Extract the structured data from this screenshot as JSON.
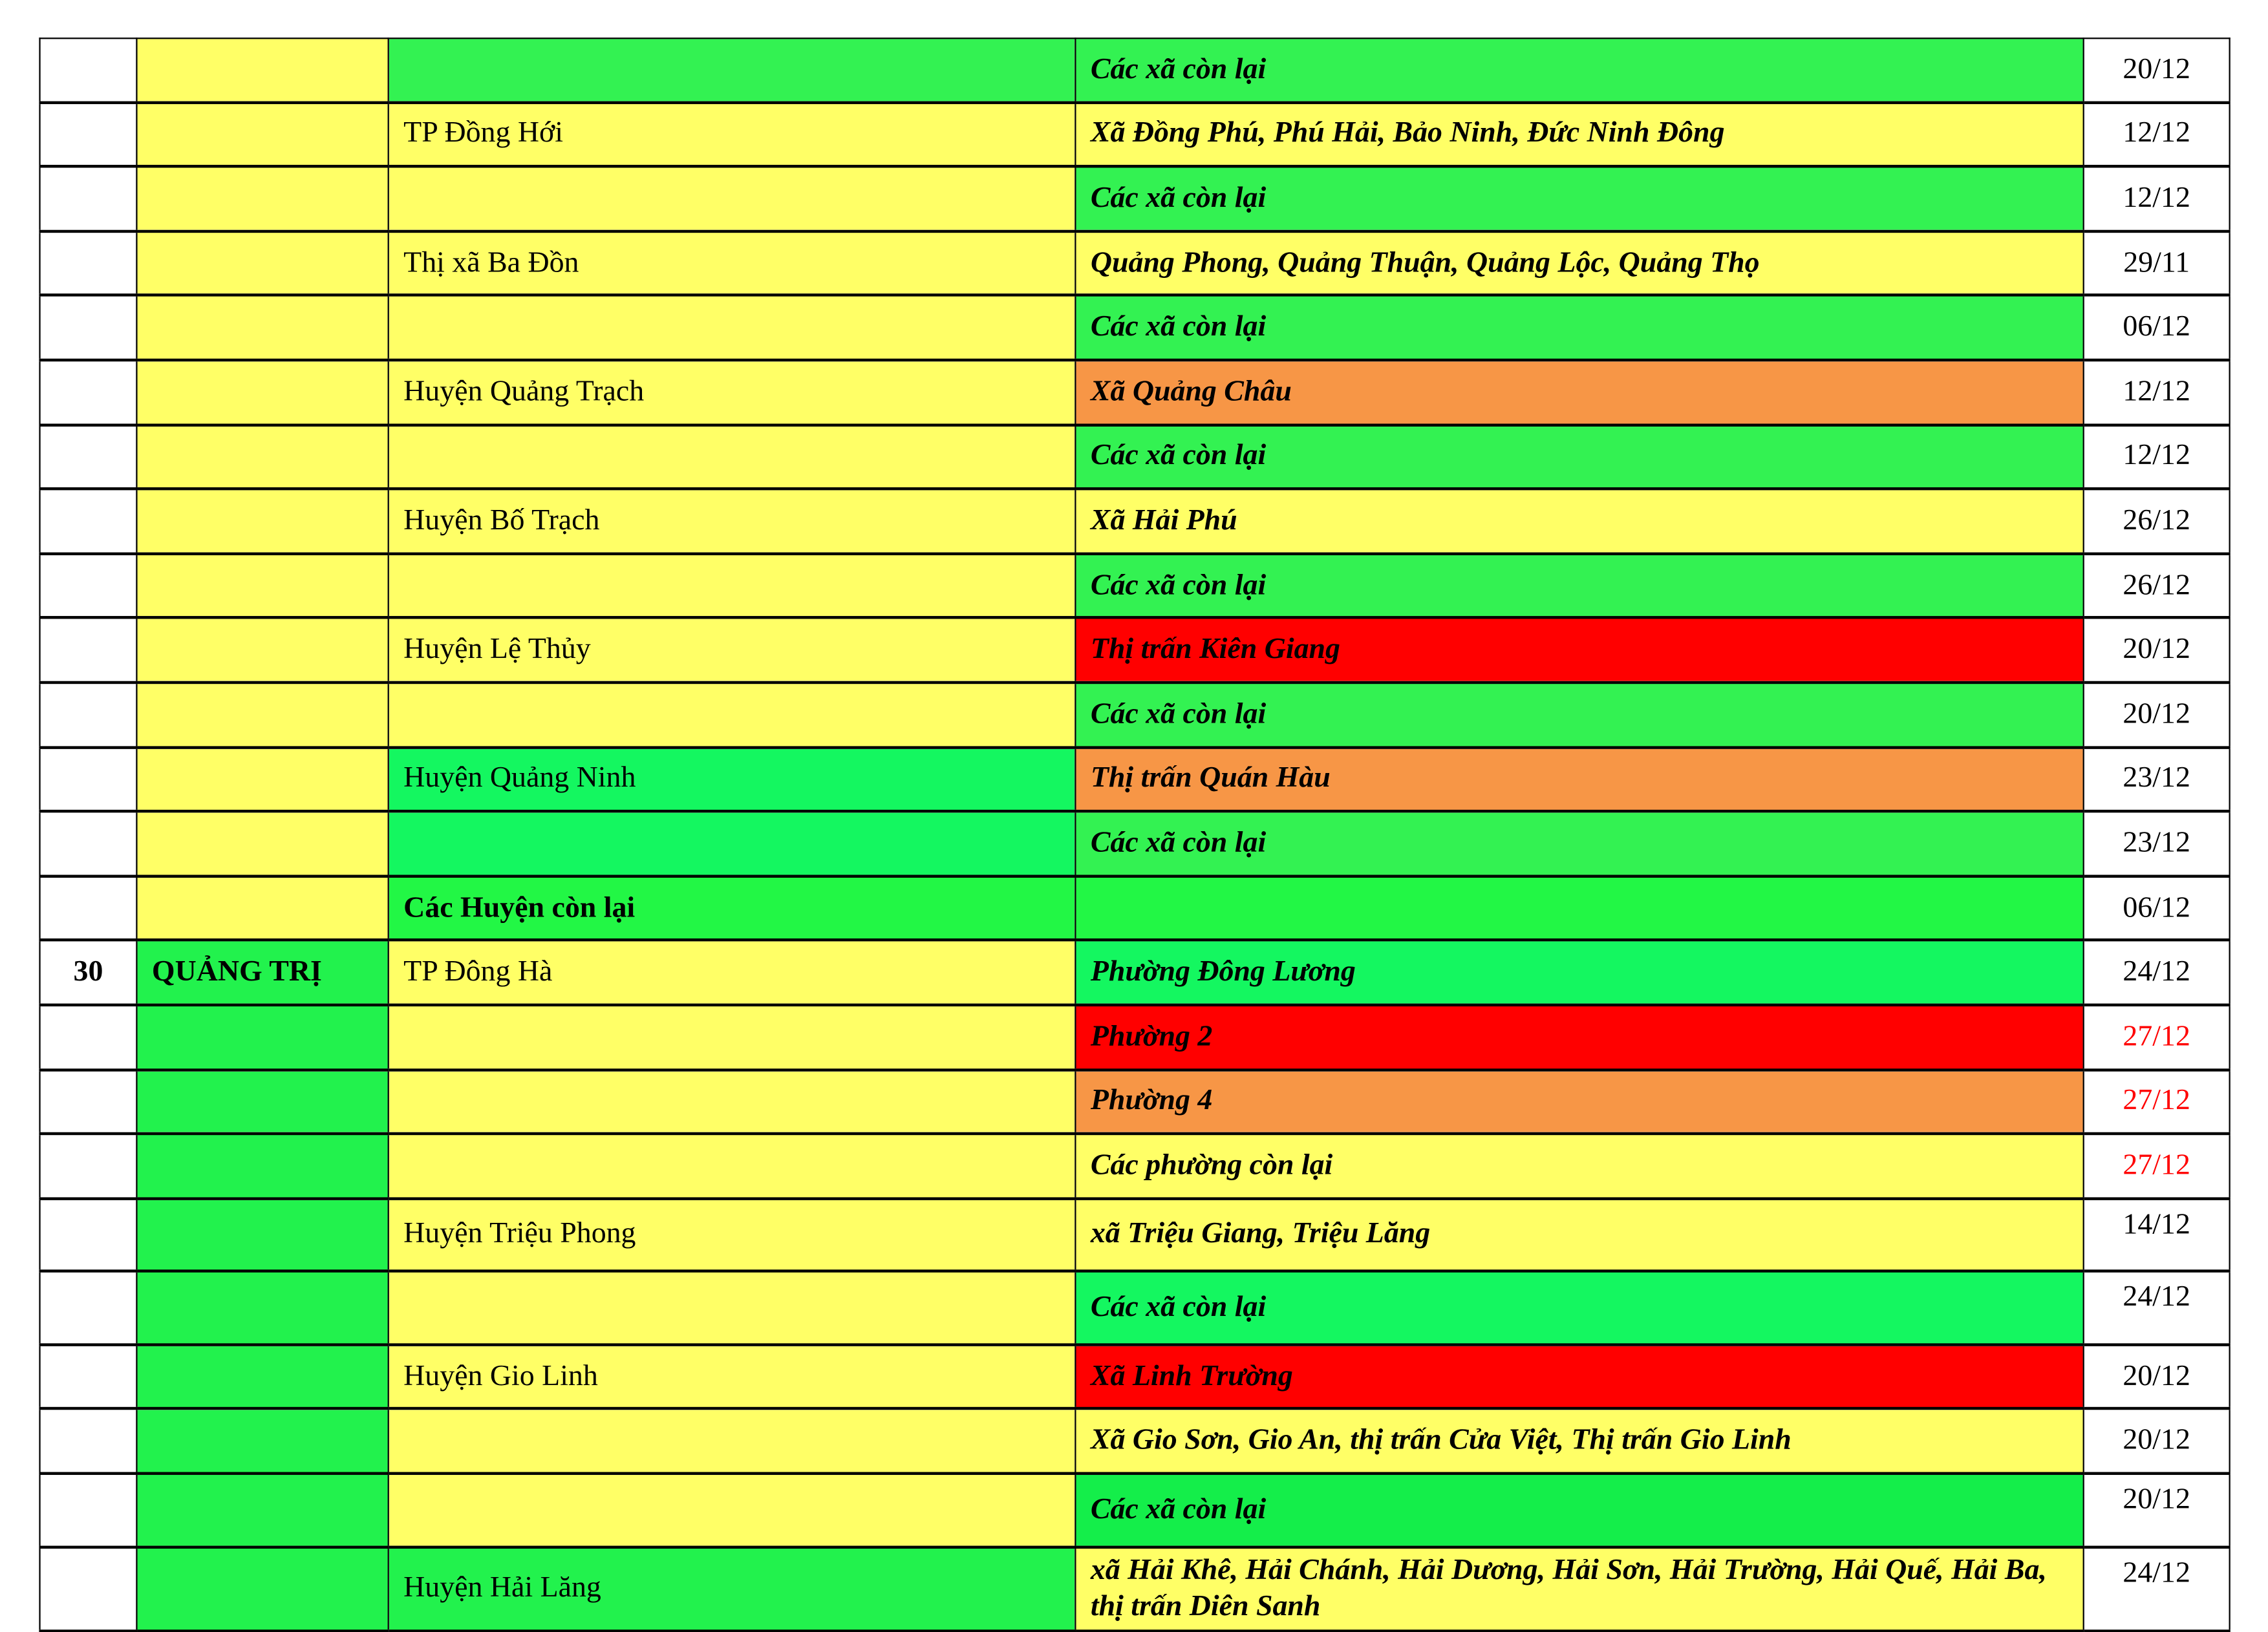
{
  "colors": {
    "yellow": "#FFFF66",
    "green_light": "#33F252",
    "green_mint": "#14F760",
    "green_bright": "#22F745",
    "green_prov": "#22F24D",
    "green_deep": "#14EE4A",
    "orange": "#F79646",
    "red": "#FF0000",
    "white": "#FFFFFF"
  },
  "rows": [
    {
      "no": "",
      "province": "",
      "district": "",
      "commune": "Các xã còn lại",
      "date": "20/12",
      "c": [
        "yellow",
        "green_light",
        "green_light"
      ]
    },
    {
      "no": "",
      "province": "",
      "district": "TP Đồng Hới",
      "commune": "Xã Đồng Phú, Phú Hải, Bảo Ninh, Đức Ninh Đông",
      "date": "12/12",
      "c": [
        "yellow",
        "yellow",
        "yellow"
      ]
    },
    {
      "no": "",
      "province": "",
      "district": "",
      "commune": "Các xã còn lại",
      "date": "12/12",
      "c": [
        "yellow",
        "yellow",
        "green_light"
      ]
    },
    {
      "no": "",
      "province": "",
      "district": "Thị xã Ba Đồn",
      "commune": "Quảng Phong, Quảng Thuận, Quảng Lộc, Quảng Thọ",
      "date": "29/11",
      "c": [
        "yellow",
        "yellow",
        "yellow"
      ]
    },
    {
      "no": "",
      "province": "",
      "district": "",
      "commune": "Các xã còn lại",
      "date": "06/12",
      "c": [
        "yellow",
        "yellow",
        "green_light"
      ]
    },
    {
      "no": "",
      "province": "",
      "district": "Huyện Quảng Trạch",
      "commune": "Xã Quảng Châu",
      "date": "12/12",
      "c": [
        "yellow",
        "yellow",
        "orange"
      ]
    },
    {
      "no": "",
      "province": "",
      "district": "",
      "commune": "Các xã còn lại",
      "date": "12/12",
      "c": [
        "yellow",
        "yellow",
        "green_light"
      ]
    },
    {
      "no": "",
      "province": "",
      "district": "Huyện Bố Trạch",
      "commune": "Xã Hải Phú",
      "date": "26/12",
      "c": [
        "yellow",
        "yellow",
        "yellow"
      ]
    },
    {
      "no": "",
      "province": "",
      "district": "",
      "commune": "Các xã còn lại",
      "date": "26/12",
      "c": [
        "yellow",
        "yellow",
        "green_light"
      ]
    },
    {
      "no": "",
      "province": "",
      "district": "Huyện Lệ Thủy",
      "commune": "Thị trấn Kiên Giang",
      "date": "20/12",
      "c": [
        "yellow",
        "yellow",
        "red"
      ]
    },
    {
      "no": "",
      "province": "",
      "district": "",
      "commune": "Các xã còn lại",
      "date": "20/12",
      "c": [
        "yellow",
        "yellow",
        "green_light"
      ]
    },
    {
      "no": "",
      "province": "",
      "district": "Huyện Quảng Ninh",
      "commune": "Thị trấn Quán Hàu",
      "date": "23/12",
      "c": [
        "yellow",
        "green_mint",
        "orange"
      ]
    },
    {
      "no": "",
      "province": "",
      "district": "",
      "commune": "Các xã còn lại",
      "date": "23/12",
      "c": [
        "yellow",
        "green_mint",
        "green_light"
      ]
    },
    {
      "no": "",
      "province": "",
      "district": "Các Huyện còn lại",
      "district_bold": true,
      "commune": "",
      "date": "06/12",
      "c": [
        "yellow",
        "green_bright",
        "green_bright"
      ]
    },
    {
      "no": "30",
      "province": "QUẢNG TRỊ",
      "district": "TP Đông Hà",
      "commune": "Phường Đông Lương",
      "date": "24/12",
      "c": [
        "green_prov",
        "yellow",
        "green_mint"
      ]
    },
    {
      "no": "",
      "province": "",
      "district": "",
      "commune": "Phường 2",
      "date": "27/12",
      "date_red": true,
      "c": [
        "green_prov",
        "yellow",
        "red"
      ]
    },
    {
      "no": "",
      "province": "",
      "district": "",
      "commune": "Phường 4",
      "date": "27/12",
      "date_red": true,
      "c": [
        "green_prov",
        "yellow",
        "orange"
      ]
    },
    {
      "no": "",
      "province": "",
      "district": "",
      "commune": "Các phường còn lại",
      "date": "27/12",
      "date_red": true,
      "c": [
        "green_prov",
        "yellow",
        "yellow"
      ]
    },
    {
      "no": "",
      "province": "",
      "district": "Huyện Triệu Phong",
      "commune": "xã Triệu Giang, Triệu Lăng",
      "date": "14/12",
      "date_top": true,
      "c": [
        "green_prov",
        "yellow",
        "yellow"
      ]
    },
    {
      "no": "",
      "province": "",
      "district": "",
      "commune": "Các xã còn lại",
      "date": "24/12",
      "date_top": true,
      "c": [
        "green_prov",
        "yellow",
        "green_mint"
      ]
    },
    {
      "no": "",
      "province": "",
      "district": "Huyện Gio Linh",
      "commune": "Xã Linh Trường",
      "date": "20/12",
      "c": [
        "green_prov",
        "yellow",
        "red"
      ]
    },
    {
      "no": "",
      "province": "",
      "district": "",
      "commune": "Xã Gio Sơn, Gio An, thị trấn Cửa Việt, Thị trấn Gio Linh",
      "date": "20/12",
      "c": [
        "green_prov",
        "yellow",
        "yellow"
      ]
    },
    {
      "no": "",
      "province": "",
      "district": "",
      "commune": "Các xã còn lại",
      "date": "20/12",
      "date_top": true,
      "c": [
        "green_prov",
        "yellow",
        "green_deep"
      ]
    },
    {
      "no": "",
      "province": "",
      "district": "Huyện Hải Lăng",
      "commune": "xã Hải Khê, Hải Chánh, Hải Dương, Hải Sơn, Hải Trường, Hải Quế, Hải Ba, thị trấn Diên Sanh",
      "date": "24/12",
      "date_top": true,
      "tall": true,
      "c": [
        "green_prov",
        "green_prov",
        "yellow"
      ]
    }
  ]
}
